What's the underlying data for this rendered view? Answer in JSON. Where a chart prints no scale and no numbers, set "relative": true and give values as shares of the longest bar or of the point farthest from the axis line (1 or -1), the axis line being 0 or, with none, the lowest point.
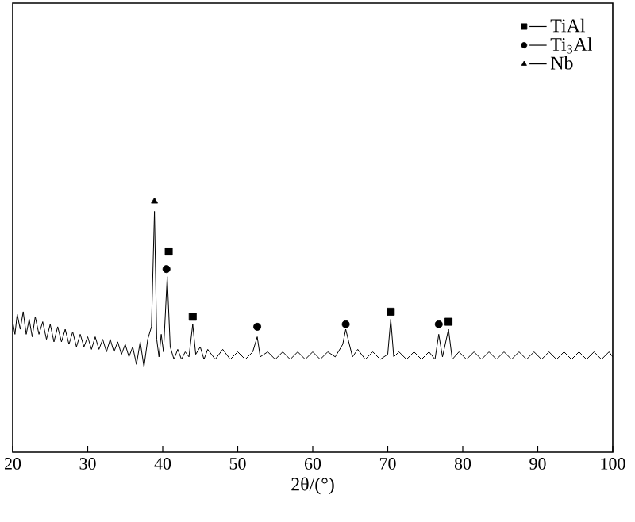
{
  "chart_data": {
    "type": "line",
    "relative": true,
    "xlabel": "2θ/(°)",
    "xlim": [
      20,
      100
    ],
    "xticks": [
      20,
      30,
      40,
      50,
      60,
      70,
      80,
      90,
      100
    ],
    "tick_labels": "x",
    "legend": "top right",
    "series": [
      {
        "color": "#000000",
        "line_style": "solid",
        "marker": "none",
        "x": [
          20,
          20.3,
          20.6,
          21,
          21.4,
          21.8,
          22.2,
          22.6,
          23,
          23.5,
          24,
          24.5,
          25,
          25.5,
          26,
          26.5,
          27,
          27.5,
          28,
          28.5,
          29,
          29.5,
          30,
          30.5,
          31,
          31.5,
          32,
          32.5,
          33,
          33.5,
          34,
          34.5,
          35,
          35.5,
          36,
          36.5,
          37,
          37.5,
          38,
          38.5,
          38.9,
          39.2,
          39.5,
          39.8,
          40.1,
          40.6,
          41,
          41.5,
          42,
          42.5,
          43,
          43.5,
          44,
          44.4,
          45,
          45.5,
          46,
          47,
          48,
          49,
          50,
          51,
          52,
          52.6,
          53,
          54,
          55,
          56,
          57,
          58,
          59,
          60,
          61,
          62,
          63,
          64,
          64.4,
          64.8,
          65.3,
          66,
          67,
          68,
          69,
          70,
          70.4,
          70.8,
          71.5,
          72.5,
          73.5,
          74.5,
          75.5,
          76.3,
          76.8,
          77.3,
          78.1,
          78.6,
          79.5,
          80.5,
          81.5,
          82.5,
          83.5,
          84.5,
          85.5,
          86.5,
          87.5,
          88.5,
          89.5,
          90.5,
          91.5,
          92.5,
          93.5,
          94.5,
          95.5,
          96.5,
          97.5,
          98.5,
          99.5,
          100
        ],
        "values": [
          0.52,
          0.47,
          0.55,
          0.49,
          0.56,
          0.47,
          0.53,
          0.46,
          0.54,
          0.47,
          0.52,
          0.45,
          0.51,
          0.44,
          0.5,
          0.44,
          0.49,
          0.43,
          0.48,
          0.42,
          0.47,
          0.42,
          0.46,
          0.41,
          0.46,
          0.41,
          0.45,
          0.4,
          0.45,
          0.4,
          0.44,
          0.39,
          0.43,
          0.38,
          0.42,
          0.35,
          0.44,
          0.34,
          0.45,
          0.5,
          0.96,
          0.45,
          0.38,
          0.47,
          0.4,
          0.7,
          0.42,
          0.37,
          0.41,
          0.37,
          0.4,
          0.38,
          0.51,
          0.39,
          0.42,
          0.37,
          0.41,
          0.37,
          0.41,
          0.37,
          0.4,
          0.37,
          0.4,
          0.46,
          0.38,
          0.4,
          0.37,
          0.4,
          0.37,
          0.4,
          0.37,
          0.4,
          0.37,
          0.4,
          0.38,
          0.43,
          0.49,
          0.44,
          0.38,
          0.41,
          0.37,
          0.4,
          0.37,
          0.39,
          0.53,
          0.38,
          0.4,
          0.37,
          0.4,
          0.37,
          0.4,
          0.37,
          0.47,
          0.38,
          0.49,
          0.37,
          0.4,
          0.37,
          0.4,
          0.37,
          0.4,
          0.37,
          0.4,
          0.37,
          0.4,
          0.37,
          0.4,
          0.37,
          0.4,
          0.37,
          0.4,
          0.37,
          0.4,
          0.37,
          0.4,
          0.37,
          0.4,
          0.38
        ]
      },
      {
        "type": "scatter",
        "name": "TiAl",
        "color": "#000000",
        "marker": "square",
        "x": [
          40.8,
          44.0,
          70.4,
          78.1
        ],
        "values": [
          0.8,
          0.54,
          0.56,
          0.52
        ]
      },
      {
        "type": "scatter",
        "name": "Ti$_{3}$Al",
        "color": "#000000",
        "marker": "circle",
        "x": [
          40.5,
          52.6,
          64.4,
          76.8
        ],
        "values": [
          0.73,
          0.5,
          0.51,
          0.51
        ]
      },
      {
        "type": "scatter",
        "name": "Nb",
        "color": "#000000",
        "marker": "triangle",
        "x": [
          38.9
        ],
        "values": [
          1.0
        ]
      }
    ]
  }
}
